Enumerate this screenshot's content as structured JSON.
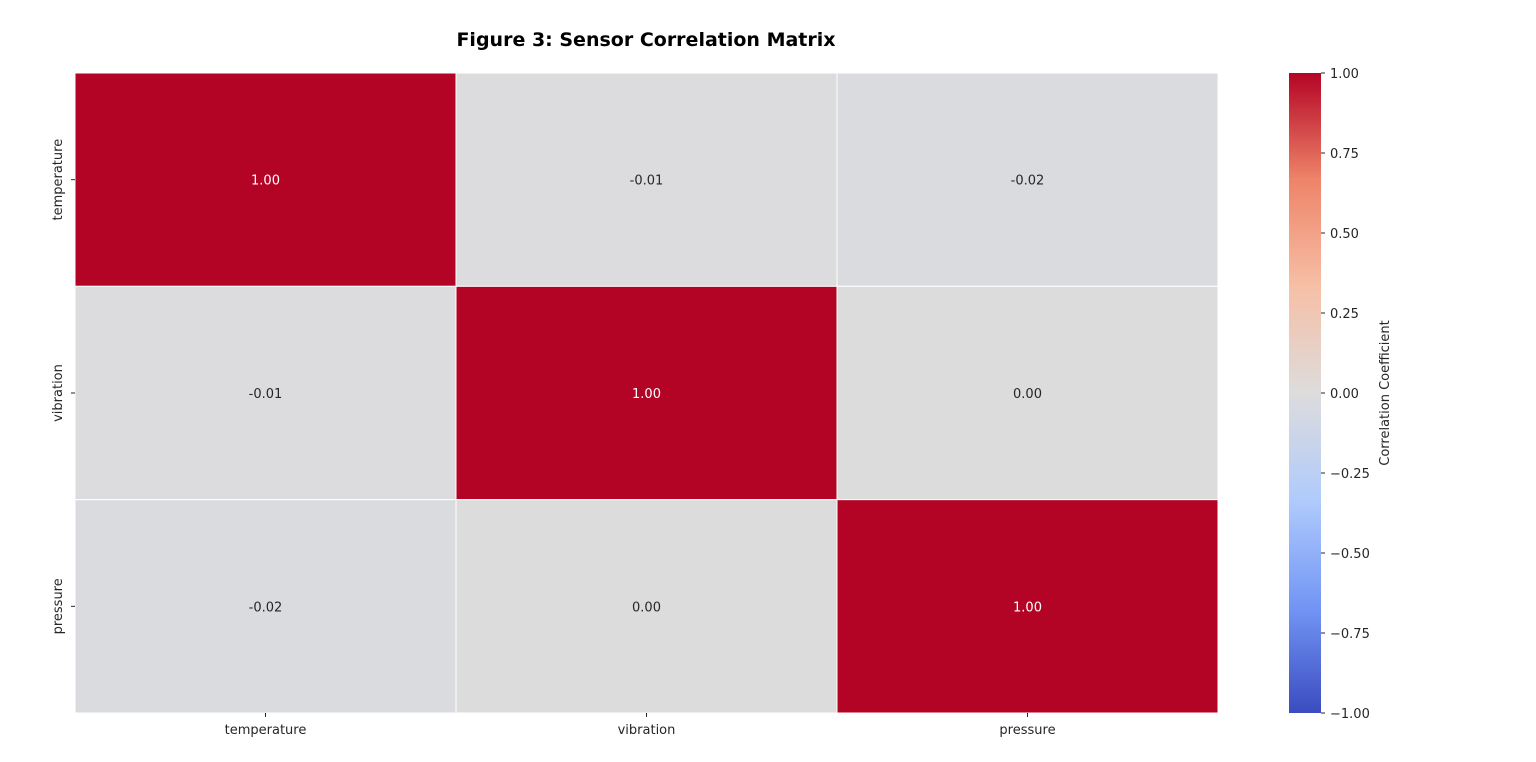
{
  "chart_data": {
    "type": "heatmap",
    "title": "Figure 3: Sensor Correlation Matrix",
    "x_categories": [
      "temperature",
      "vibration",
      "pressure"
    ],
    "y_categories": [
      "temperature",
      "vibration",
      "pressure"
    ],
    "values": [
      [
        1.0,
        -0.01,
        -0.02
      ],
      [
        -0.01,
        1.0,
        0.0
      ],
      [
        -0.02,
        0.0,
        1.0
      ]
    ],
    "value_labels": [
      [
        "1.00",
        "-0.01",
        "-0.02"
      ],
      [
        "-0.01",
        "1.00",
        "0.00"
      ],
      [
        "-0.02",
        "0.00",
        "1.00"
      ]
    ],
    "colorbar": {
      "label": "Correlation Coefficient",
      "range": [
        -1.0,
        1.0
      ],
      "ticks": [
        1.0,
        0.75,
        0.5,
        0.25,
        0.0,
        -0.25,
        -0.5,
        -0.75,
        -1.0
      ],
      "tick_labels": [
        "1.00",
        "0.75",
        "0.50",
        "0.25",
        "0.00",
        "−0.25",
        "−0.50",
        "−0.75",
        "−1.00"
      ],
      "colormap": "coolwarm",
      "color_stops": [
        "#3b4cc0",
        "#7396f5",
        "#b0cbfc",
        "#dddcdc",
        "#f6bfa6",
        "#ee8468",
        "#b40426"
      ]
    }
  }
}
